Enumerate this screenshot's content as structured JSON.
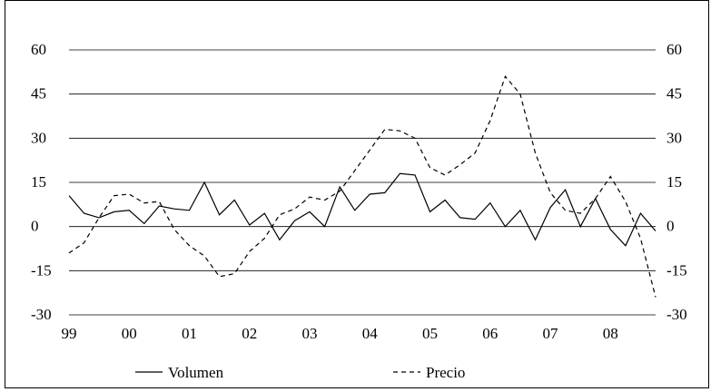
{
  "chart_data": {
    "type": "line",
    "title": "",
    "xlabel": "",
    "ylabel": "",
    "ylim": [
      -30,
      60
    ],
    "y_ticks": [
      "60",
      "45",
      "30",
      "15",
      "0",
      "-15",
      "-30"
    ],
    "y_tick_values": [
      60,
      45,
      30,
      15,
      0,
      -15,
      -30
    ],
    "x_labels": [
      "99",
      "00",
      "01",
      "02",
      "03",
      "04",
      "05",
      "06",
      "07",
      "08"
    ],
    "grid": "horizontal",
    "legend_position": "bottom",
    "series": [
      {
        "name": "Volumen",
        "style": "solid",
        "color": "#000000",
        "values": [
          10.5,
          4.5,
          3,
          5,
          5.5,
          1,
          7,
          6,
          5.5,
          15,
          4,
          9,
          0.5,
          4.5,
          -4.5,
          2,
          5,
          0,
          13.5,
          5.5,
          11,
          11.5,
          18,
          17.5,
          5,
          9,
          3,
          2.5,
          8,
          0,
          5.5,
          -4.5,
          6.5,
          12.5,
          0,
          9.5,
          -1,
          -6.5,
          4.5,
          -1.5
        ]
      },
      {
        "name": "Precio",
        "style": "dashed",
        "color": "#000000",
        "values": [
          -9,
          -5.5,
          3,
          10.5,
          11,
          8,
          8.5,
          -1,
          -6.5,
          -10,
          -17,
          -16,
          -8.5,
          -4,
          4,
          6,
          10,
          9,
          12,
          19,
          26,
          33,
          32.5,
          30,
          20,
          17.5,
          21,
          25,
          36,
          51,
          45,
          25,
          11.5,
          5.5,
          4.5,
          9.5,
          17,
          8.5,
          -4,
          -24
        ]
      }
    ]
  }
}
